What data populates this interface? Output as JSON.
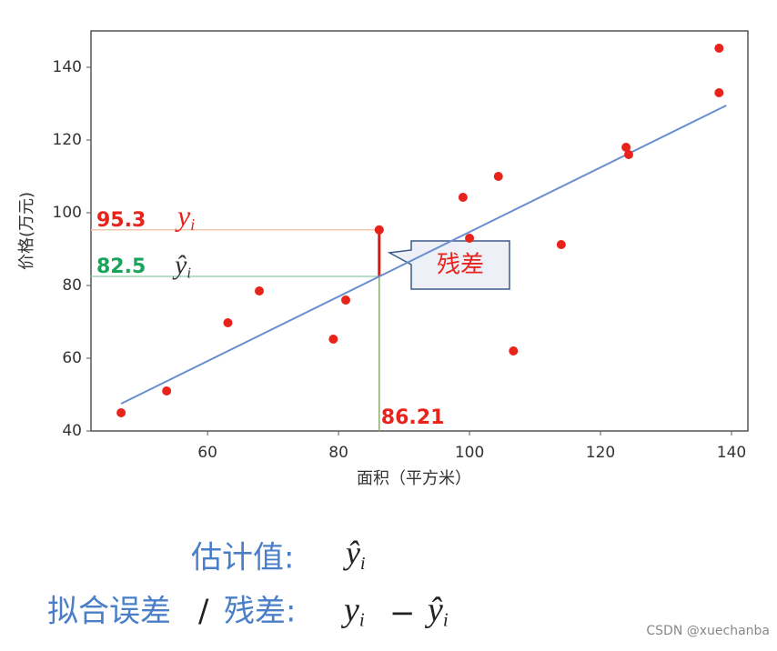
{
  "chart_data": {
    "type": "scatter",
    "x_label": "面积（平方米）",
    "y_label": "价格(万元)",
    "x": [
      46.8,
      53.75,
      63.1,
      67.9,
      79.2,
      81.1,
      86.21,
      99.0,
      100,
      104.4,
      106.7,
      114.0,
      123.9,
      124.3,
      138.1,
      138.1
    ],
    "values": [
      45,
      51,
      69.75,
      78.5,
      65.25,
      76,
      95.3,
      104.25,
      93,
      110,
      62,
      91.25,
      118,
      116,
      145.25,
      133
    ],
    "color": "#e8231b",
    "fit_line": {
      "x": [
        46.8,
        139.2
      ],
      "values": [
        47.5,
        129.5
      ],
      "color": "#6a8fd0"
    },
    "xlim": [
      42.2,
      142.5
    ],
    "ylim": [
      40,
      150
    ],
    "xticks": [
      60,
      80,
      100,
      120,
      140
    ],
    "yticks": [
      40,
      60,
      80,
      100,
      120,
      140
    ],
    "residual": {
      "x": 86.21,
      "y": 95.3,
      "y_hat": 82.5,
      "callout": "残差",
      "y_symbol": "y",
      "y_hat_symbol": "ŷ",
      "subscript": "i"
    }
  },
  "formula": {
    "estimate_label": "估计值:",
    "estimate_symbol": "ŷ",
    "estimate_sub": "i",
    "residual_label_1": "拟合误差",
    "slash": "/",
    "residual_label_2": "残差:",
    "res_y": "y",
    "res_sub_1": "i",
    "minus": "−",
    "res_yhat": "ŷ",
    "res_sub_2": "i"
  },
  "watermark": "CSDN @xuechanba"
}
